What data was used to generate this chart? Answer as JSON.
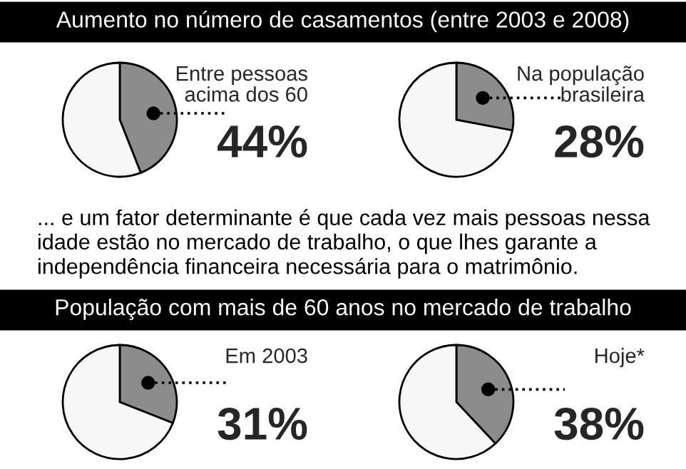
{
  "chart_data": [
    {
      "type": "other",
      "annotations": [
        "Aumento no número de casamentos (entre 2003 e 2008)",
        "... e um fator determinante é que cada vez mais pessoas nessa\nidade estão no mercado de trabalho, o que lhes garante a\nindependência financeira necessária para o matrimônio.",
        "População com mais de 60 anos no mercado de trabalho"
      ]
    },
    {
      "type": "pie",
      "title": "Entre pessoas\nacima dos 60",
      "categories": [
        null,
        null
      ],
      "values": [
        44,
        56
      ],
      "colors": [
        "#8c8c8c",
        "#f7f7f7"
      ],
      "value_labels": [
        "44%",
        null
      ]
    },
    {
      "type": "pie",
      "title": "Na população\nbrasileira",
      "categories": [
        null,
        null
      ],
      "values": [
        28,
        72
      ],
      "colors": [
        "#8c8c8c",
        "#f7f7f7"
      ],
      "value_labels": [
        "28%",
        null
      ]
    },
    {
      "type": "pie",
      "title": "Em 2003",
      "categories": [
        null,
        null
      ],
      "values": [
        31,
        69
      ],
      "colors": [
        "#8c8c8c",
        "#f7f7f7"
      ],
      "value_labels": [
        "31%",
        null
      ]
    },
    {
      "type": "pie",
      "title": "Hoje*",
      "categories": [
        null,
        null
      ],
      "values": [
        38,
        62
      ],
      "colors": [
        "#8c8c8c",
        "#f7f7f7"
      ],
      "value_labels": [
        "38%",
        null
      ]
    }
  ]
}
